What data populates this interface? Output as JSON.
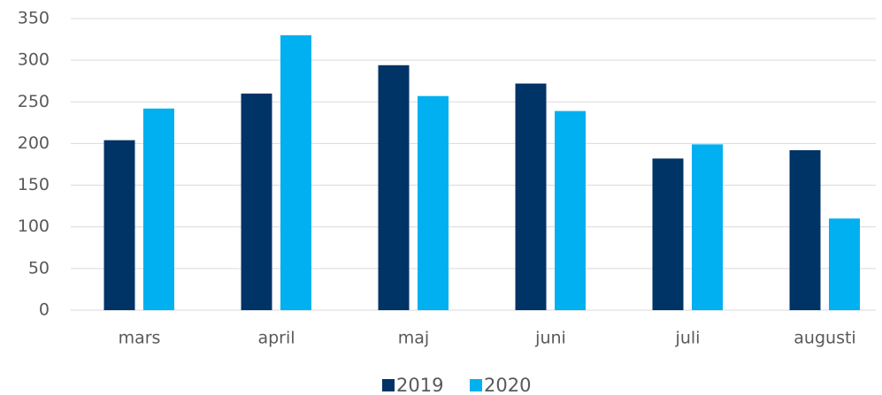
{
  "chart_data": {
    "type": "bar",
    "categories": [
      "mars",
      "april",
      "maj",
      "juni",
      "juli",
      "augusti"
    ],
    "series": [
      {
        "name": "2019",
        "color": "#003366",
        "values": [
          204,
          260,
          294,
          272,
          182,
          192
        ]
      },
      {
        "name": "2020",
        "color": "#00b0f0",
        "values": [
          242,
          330,
          257,
          239,
          199,
          110
        ]
      }
    ],
    "ylim": [
      0,
      350
    ],
    "yticks": [
      0,
      50,
      100,
      150,
      200,
      250,
      300,
      350
    ],
    "grid": true,
    "legend": "bottom"
  }
}
